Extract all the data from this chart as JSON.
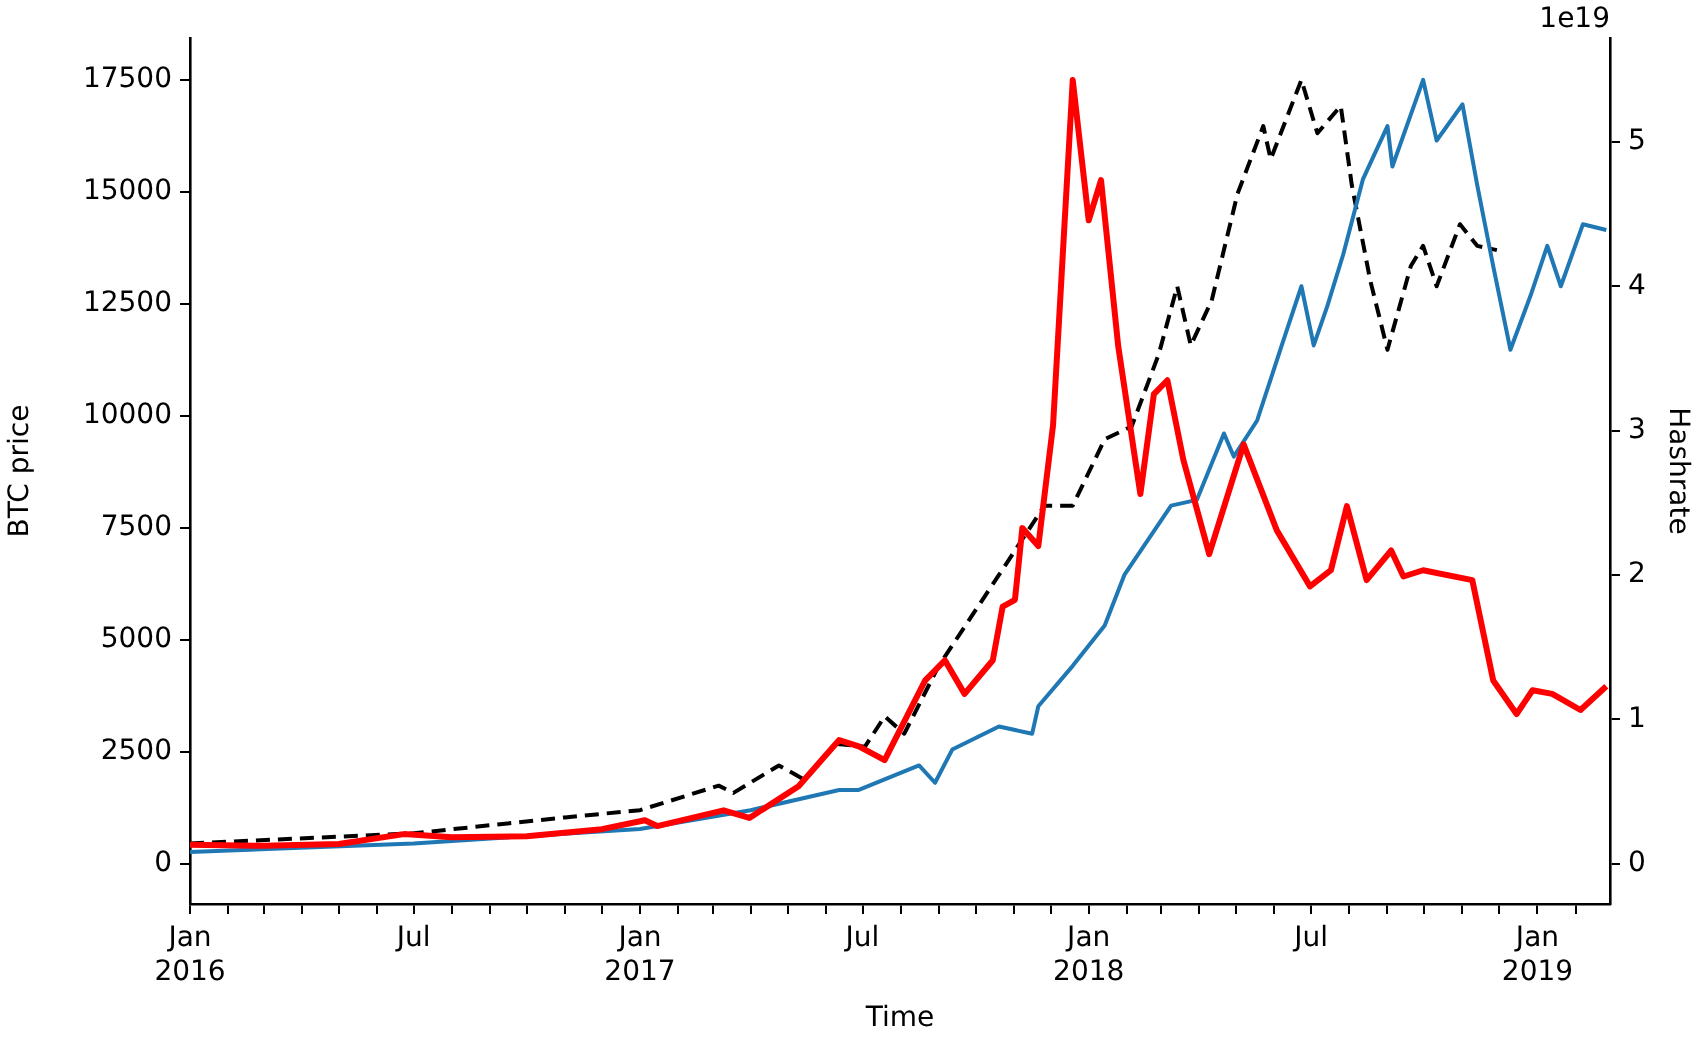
{
  "chart_data": {
    "type": "line",
    "xlabel": "Time",
    "ylabel": "BTC price",
    "y2label": "Hashrate",
    "annotations": [
      "1e19"
    ],
    "xlim": [
      "2016-01-01",
      "2019-03-01"
    ],
    "xticks": [
      {
        "value": "2016-01-01",
        "label": "Jan\n2016"
      },
      {
        "value": "2016-02-01",
        "label": null
      },
      {
        "value": "2016-03-01",
        "label": null
      },
      {
        "value": "2016-04-01",
        "label": null
      },
      {
        "value": "2016-05-01",
        "label": null
      },
      {
        "value": "2016-06-01",
        "label": null
      },
      {
        "value": "2016-07-01",
        "label": "Jul"
      },
      {
        "value": "2016-08-01",
        "label": null
      },
      {
        "value": "2016-09-01",
        "label": null
      },
      {
        "value": "2016-10-01",
        "label": null
      },
      {
        "value": "2016-11-01",
        "label": null
      },
      {
        "value": "2016-12-01",
        "label": null
      },
      {
        "value": "2017-01-01",
        "label": "Jan\n2017"
      },
      {
        "value": "2017-02-01",
        "label": null
      },
      {
        "value": "2017-03-01",
        "label": null
      },
      {
        "value": "2017-04-01",
        "label": null
      },
      {
        "value": "2017-05-01",
        "label": null
      },
      {
        "value": "2017-06-01",
        "label": null
      },
      {
        "value": "2017-07-01",
        "label": "Jul"
      },
      {
        "value": "2017-08-01",
        "label": null
      },
      {
        "value": "2017-09-01",
        "label": null
      },
      {
        "value": "2017-10-01",
        "label": null
      },
      {
        "value": "2017-11-01",
        "label": null
      },
      {
        "value": "2017-12-01",
        "label": null
      },
      {
        "value": "2018-01-01",
        "label": "Jan\n2018"
      },
      {
        "value": "2018-02-01",
        "label": null
      },
      {
        "value": "2018-03-01",
        "label": null
      },
      {
        "value": "2018-04-01",
        "label": null
      },
      {
        "value": "2018-05-01",
        "label": null
      },
      {
        "value": "2018-06-01",
        "label": null
      },
      {
        "value": "2018-07-01",
        "label": "Jul"
      },
      {
        "value": "2018-08-01",
        "label": null
      },
      {
        "value": "2018-09-01",
        "label": null
      },
      {
        "value": "2018-10-01",
        "label": null
      },
      {
        "value": "2018-11-01",
        "label": null
      },
      {
        "value": "2018-12-01",
        "label": null
      },
      {
        "value": "2019-01-01",
        "label": "Jan\n2019"
      },
      {
        "value": "2019-02-01",
        "label": null
      }
    ],
    "ylim": [
      -890,
      18440
    ],
    "yticks": [
      0,
      2500,
      5000,
      7500,
      10000,
      12500,
      15000,
      17500
    ],
    "y2lim": [
      -0.28,
      5.72
    ],
    "y2ticks": [
      0,
      1,
      2,
      3,
      4,
      5
    ],
    "grid": false,
    "legend": false,
    "series": [
      {
        "color": "#ff0000",
        "line_style": "solid",
        "x": [
          "2016-01-01",
          "2016-03-01",
          "2016-05-01",
          "2016-06-23",
          "2016-08-01",
          "2016-10-01",
          "2016-12-01",
          "2017-01-05",
          "2017-01-15",
          "2017-03-10",
          "2017-03-31",
          "2017-05-10",
          "2017-06-12",
          "2017-06-28",
          "2017-07-19",
          "2017-08-21",
          "2017-09-06",
          "2017-09-22",
          "2017-10-15",
          "2017-10-23",
          "2017-11-02",
          "2017-11-08",
          "2017-11-21",
          "2017-12-03",
          "2017-12-19",
          "2018-01-01",
          "2018-01-11",
          "2018-01-25",
          "2018-02-12",
          "2018-02-23",
          "2018-03-06",
          "2018-03-19",
          "2018-04-09",
          "2018-05-07",
          "2018-06-03",
          "2018-06-30",
          "2018-07-17",
          "2018-07-30",
          "2018-08-15",
          "2018-09-04",
          "2018-09-14",
          "2018-09-30",
          "2018-11-09",
          "2018-11-26",
          "2018-12-15",
          "2018-12-28",
          "2019-01-13",
          "2019-02-05",
          "2019-02-26"
        ],
        "values": [
          430,
          410,
          450,
          670,
          600,
          620,
          780,
          980,
          850,
          1200,
          1030,
          1740,
          2770,
          2630,
          2320,
          4100,
          4550,
          3800,
          4550,
          5750,
          5900,
          7500,
          7100,
          9800,
          17500,
          14370,
          15270,
          11560,
          8260,
          10490,
          10800,
          9020,
          6920,
          9370,
          7450,
          6200,
          6560,
          7990,
          6340,
          7000,
          6420,
          6560,
          6340,
          4100,
          3350,
          3880,
          3800,
          3440,
          3970
        ]
      },
      {
        "color": "#1f77b4",
        "axis": "y2",
        "line_style": "solid",
        "x": [
          "2016-01-01",
          "2016-07-01",
          "2017-01-01",
          "2017-04-01",
          "2017-06-12",
          "2017-06-28",
          "2017-08-16",
          "2017-08-29",
          "2017-09-12",
          "2017-10-20",
          "2017-11-16",
          "2017-11-21",
          "2017-12-19",
          "2018-01-14",
          "2018-01-30",
          "2018-03-09",
          "2018-03-30",
          "2018-04-21",
          "2018-04-29",
          "2018-05-18",
          "2018-06-07",
          "2018-06-23",
          "2018-07-03",
          "2018-07-14",
          "2018-07-27",
          "2018-08-12",
          "2018-09-01",
          "2018-09-05",
          "2018-09-30",
          "2018-10-11",
          "2018-11-01",
          "2018-11-13",
          "2018-11-26",
          "2018-12-10",
          "2018-12-27",
          "2019-01-09",
          "2019-01-20",
          "2019-02-07",
          "2019-02-26"
        ],
        "values": [
          0.08,
          0.14,
          0.24,
          0.37,
          0.51,
          0.51,
          0.68,
          0.56,
          0.79,
          0.95,
          0.9,
          1.09,
          1.37,
          1.65,
          2.0,
          2.48,
          2.52,
          2.98,
          2.82,
          3.07,
          3.59,
          4.0,
          3.59,
          3.86,
          4.22,
          4.74,
          5.11,
          4.83,
          5.43,
          5.01,
          5.26,
          4.7,
          4.14,
          3.56,
          3.95,
          4.28,
          4.0,
          4.43,
          4.39
        ]
      },
      {
        "color": "#000000",
        "axis": "y2",
        "line_style": "dashed",
        "x": [
          "2016-01-01",
          "2016-07-01",
          "2016-11-01",
          "2017-01-01",
          "2017-03-06",
          "2017-03-18",
          "2017-04-24",
          "2017-05-15",
          "2017-06-09",
          "2017-07-03",
          "2017-07-19",
          "2017-08-04",
          "2017-09-01",
          "2017-10-20",
          "2017-11-26",
          "2017-12-19",
          "2018-01-14",
          "2018-02-05",
          "2018-02-27",
          "2018-03-14",
          "2018-03-25",
          "2018-04-11",
          "2018-05-02",
          "2018-05-23",
          "2018-05-29",
          "2018-06-23",
          "2018-07-06",
          "2018-07-25",
          "2018-08-03",
          "2018-08-18",
          "2018-09-01",
          "2018-09-20",
          "2018-09-30",
          "2018-10-11",
          "2018-10-30",
          "2018-11-13",
          "2018-11-29"
        ],
        "values": [
          0.14,
          0.21,
          0.32,
          0.37,
          0.54,
          0.49,
          0.68,
          0.58,
          0.83,
          0.81,
          1.02,
          0.9,
          1.37,
          2.0,
          2.48,
          2.48,
          2.94,
          3.03,
          3.53,
          4.0,
          3.59,
          3.9,
          4.64,
          5.11,
          4.88,
          5.43,
          5.06,
          5.25,
          4.7,
          4.04,
          3.56,
          4.14,
          4.28,
          4.0,
          4.43,
          4.28,
          4.25
        ]
      }
    ]
  }
}
